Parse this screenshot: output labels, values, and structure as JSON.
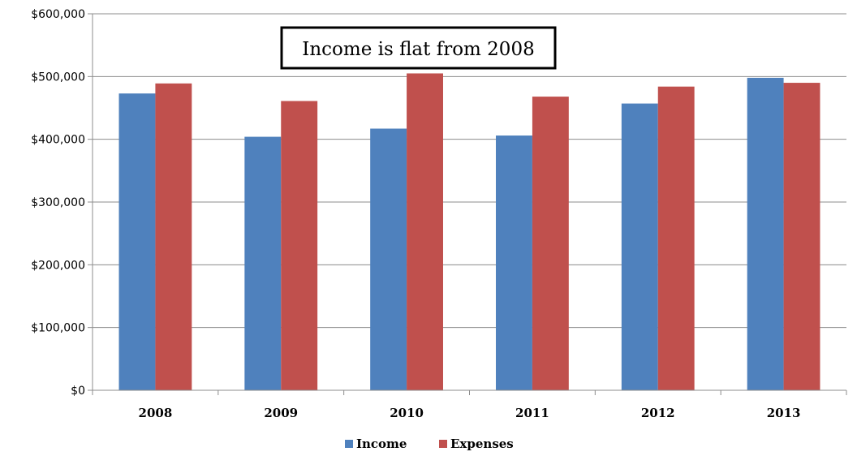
{
  "chart_data": {
    "type": "bar",
    "categories": [
      "2008",
      "2009",
      "2010",
      "2011",
      "2012",
      "2013"
    ],
    "series": [
      {
        "name": "Income",
        "color": "#4F81BD",
        "values": [
          473000,
          404000,
          417000,
          406000,
          457000,
          498000
        ]
      },
      {
        "name": "Expenses",
        "color": "#C0504D",
        "values": [
          489000,
          461000,
          505000,
          468000,
          484000,
          490000
        ]
      }
    ],
    "y_ticks": [
      "$0",
      "$100,000",
      "$200,000",
      "$300,000",
      "$400,000",
      "$500,000",
      "$600,000"
    ],
    "ylim": [
      0,
      600000
    ],
    "grid": true,
    "legend": "bottom-center",
    "annotation": "Income is flat from 2008"
  }
}
